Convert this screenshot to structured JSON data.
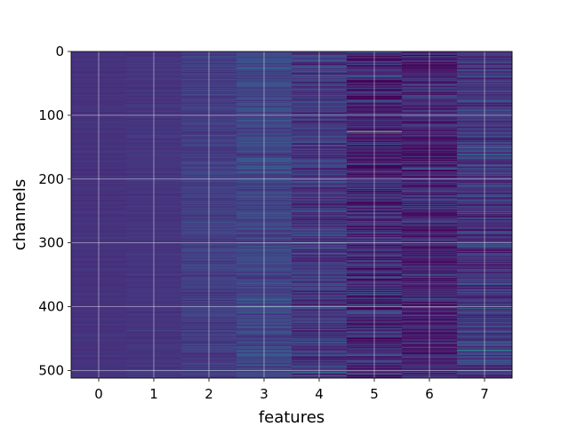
{
  "chart_data": {
    "type": "heatmap",
    "title": "",
    "xlabel": "features",
    "ylabel": "channels",
    "x_categories": [
      0,
      1,
      2,
      3,
      4,
      5,
      6,
      7
    ],
    "x_ticks": [
      "0",
      "1",
      "2",
      "3",
      "4",
      "5",
      "6",
      "7"
    ],
    "y_ticks": [
      "0",
      "100",
      "200",
      "300",
      "400",
      "500"
    ],
    "y_tick_values": [
      0,
      100,
      200,
      300,
      400,
      500
    ],
    "n_rows": 512,
    "ylim": [
      512,
      0
    ],
    "y_inverted": true,
    "colormap": "viridis",
    "grid": true,
    "column_base_value": [
      0.18,
      0.19,
      0.22,
      0.26,
      0.2,
      0.14,
      0.13,
      0.2
    ],
    "column_noise": [
      0.02,
      0.03,
      0.06,
      0.1,
      0.14,
      0.18,
      0.16,
      0.16
    ],
    "bright_cells": [
      {
        "column": 5,
        "channel": 125,
        "value": 0.95
      },
      {
        "column": 7,
        "channel": 468,
        "value": 0.7
      },
      {
        "column": 6,
        "channel": 184,
        "value": 0.62
      },
      {
        "column": 4,
        "channel": 300,
        "value": 0.6
      },
      {
        "column": 7,
        "channel": 162,
        "value": 0.55
      },
      {
        "column": 7,
        "channel": 402,
        "value": 0.55
      },
      {
        "column": 7,
        "channel": 328,
        "value": 0.5
      },
      {
        "column": 3,
        "channel": 25,
        "value": 0.5
      },
      {
        "column": 4,
        "channel": 44,
        "value": 0.5
      },
      {
        "column": 5,
        "channel": 333,
        "value": 0.5
      },
      {
        "column": 6,
        "channel": 272,
        "value": 0.45
      },
      {
        "column": 6,
        "channel": 350,
        "value": 0.45
      },
      {
        "column": 3,
        "channel": 180,
        "value": 0.42
      },
      {
        "column": 4,
        "channel": 140,
        "value": 0.42
      },
      {
        "column": 5,
        "channel": 505,
        "value": 0.5
      }
    ]
  }
}
